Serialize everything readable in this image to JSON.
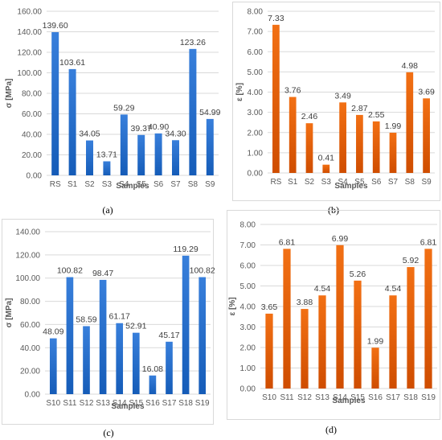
{
  "chart_data": [
    {
      "type": "bar",
      "panel_label": "(a)",
      "ylabel": "σ [MPa]",
      "xlabel": "Samples",
      "categories": [
        "RS",
        "S1",
        "S2",
        "S3",
        "S4",
        "S5",
        "S6",
        "S7",
        "S8",
        "S9"
      ],
      "values": [
        139.6,
        103.61,
        34.05,
        13.71,
        59.29,
        39.37,
        40.9,
        34.3,
        123.26,
        54.99
      ],
      "value_labels": [
        "139.60",
        "103.61",
        "34.05",
        "13.71",
        "59.29",
        "39.37",
        "40.90",
        "34.30",
        "123.26",
        "54.99"
      ],
      "ylim": [
        0,
        160
      ],
      "yticks": [
        "0.00",
        "20.00",
        "40.00",
        "60.00",
        "80.00",
        "100.00",
        "120.00",
        "140.00",
        "160.00"
      ],
      "grid": true,
      "color": "#2e75d1"
    },
    {
      "type": "bar",
      "panel_label": "(b)",
      "ylabel": "ε [%]",
      "xlabel": "Samples",
      "categories": [
        "RS",
        "S1",
        "S2",
        "S3",
        "S4",
        "S5",
        "S6",
        "S7",
        "S8",
        "S9"
      ],
      "values": [
        7.33,
        3.76,
        2.46,
        0.41,
        3.49,
        2.87,
        2.55,
        1.99,
        4.98,
        3.69
      ],
      "value_labels": [
        "7.33",
        "3.76",
        "2.46",
        "0.41",
        "3.49",
        "2.87",
        "2.55",
        "1.99",
        "4.98",
        "3.69"
      ],
      "ylim": [
        0,
        8
      ],
      "yticks": [
        "0.00",
        "1.00",
        "2.00",
        "3.00",
        "4.00",
        "5.00",
        "6.00",
        "7.00",
        "8.00"
      ],
      "grid": true,
      "color": "#e8660a"
    },
    {
      "type": "bar",
      "panel_label": "(c)",
      "ylabel": "σ [MPa]",
      "xlabel": "Samples",
      "categories": [
        "S10",
        "S11",
        "S12",
        "S13",
        "S14",
        "S15",
        "S16",
        "S17",
        "S18",
        "S19"
      ],
      "values": [
        48.09,
        100.82,
        58.59,
        98.47,
        61.17,
        52.91,
        16.08,
        45.17,
        119.29,
        100.82
      ],
      "value_labels": [
        "48.09",
        "100.82",
        "58.59",
        "98.47",
        "61.17",
        "52.91",
        "16.08",
        "45.17",
        "119.29",
        "100.82"
      ],
      "ylim": [
        0,
        140
      ],
      "yticks": [
        "0.00",
        "20.00",
        "40.00",
        "60.00",
        "80.00",
        "100.00",
        "120.00",
        "140.00"
      ],
      "grid": true,
      "color": "#2e75d1"
    },
    {
      "type": "bar",
      "panel_label": "(d)",
      "ylabel": "ε [%]",
      "xlabel": "Samples",
      "categories": [
        "S10",
        "S11",
        "S12",
        "S13",
        "S14",
        "S15",
        "S16",
        "S17",
        "S18",
        "S19"
      ],
      "values": [
        3.65,
        6.81,
        3.88,
        4.54,
        6.99,
        5.26,
        1.99,
        4.54,
        5.92,
        6.81
      ],
      "value_labels": [
        "3.65",
        "6.81",
        "3.88",
        "4.54",
        "6.99",
        "5.26",
        "1.99",
        "4.54",
        "5.92",
        "6.81"
      ],
      "ylim": [
        0,
        8
      ],
      "yticks": [
        "0.00",
        "1.00",
        "2.00",
        "3.00",
        "4.00",
        "5.00",
        "6.00",
        "7.00",
        "8.00"
      ],
      "grid": true,
      "color": "#e8660a"
    }
  ]
}
